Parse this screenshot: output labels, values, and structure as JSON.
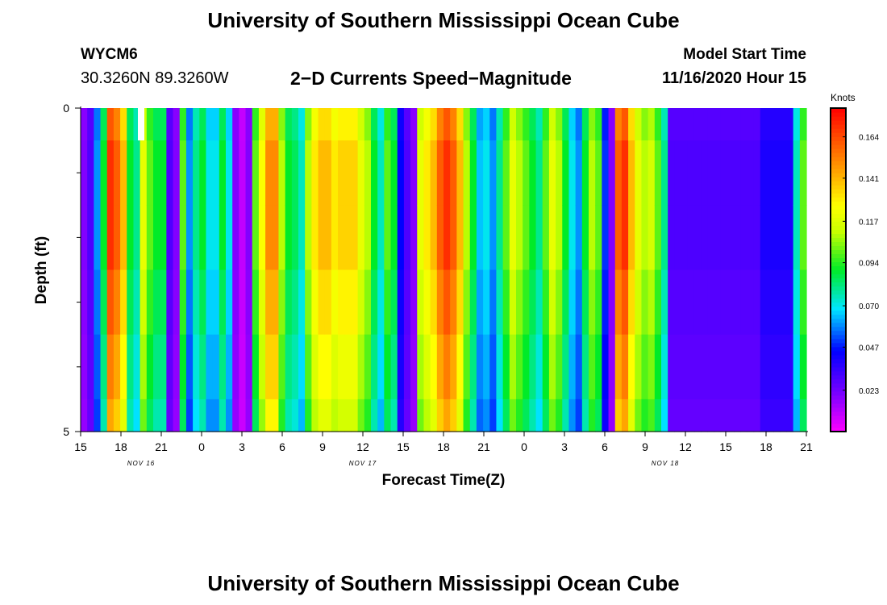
{
  "header": {
    "title": "University of Southern Mississippi Ocean Cube",
    "station_id": "WYCM6",
    "station_coords": "30.3260N 89.3260W",
    "subtitle": "2−D Currents Speed−Magnitude",
    "model_start_label": "Model Start Time",
    "model_start_value": "11/16/2020 Hour 15"
  },
  "footer": {
    "title": "University of Southern Mississippi Ocean Cube"
  },
  "chart_data": {
    "type": "heatmap",
    "xlabel": "Forecast Time(Z)",
    "ylabel": "Depth (ft)",
    "x_range": [
      15,
      69
    ],
    "y_range": [
      0,
      5
    ],
    "x_ticks": [
      {
        "offset": 0,
        "label": "15"
      },
      {
        "offset": 3,
        "label": "18"
      },
      {
        "offset": 6,
        "label": "21"
      },
      {
        "offset": 9,
        "label": "0"
      },
      {
        "offset": 12,
        "label": "3"
      },
      {
        "offset": 15,
        "label": "6"
      },
      {
        "offset": 18,
        "label": "9"
      },
      {
        "offset": 21,
        "label": "12"
      },
      {
        "offset": 24,
        "label": "15"
      },
      {
        "offset": 27,
        "label": "18"
      },
      {
        "offset": 30,
        "label": "21"
      },
      {
        "offset": 33,
        "label": "0"
      },
      {
        "offset": 36,
        "label": "3"
      },
      {
        "offset": 39,
        "label": "6"
      },
      {
        "offset": 42,
        "label": "9"
      },
      {
        "offset": 45,
        "label": "12"
      },
      {
        "offset": 48,
        "label": "15"
      },
      {
        "offset": 51,
        "label": "18"
      },
      {
        "offset": 54,
        "label": "21"
      }
    ],
    "date_labels": [
      {
        "offset": 4.5,
        "label": "NOV 16"
      },
      {
        "offset": 21,
        "label": "NOV 17"
      },
      {
        "offset": 43.5,
        "label": "NOV 18"
      }
    ],
    "y_ticks": [
      {
        "value": 0,
        "label": "0"
      },
      {
        "value": 5,
        "label": "5"
      }
    ],
    "y_minor_ticks": [
      1,
      2,
      3,
      4
    ],
    "depth_layers": [
      0,
      0.5,
      1.5,
      2.5,
      3.5,
      4.5
    ],
    "colorbar": {
      "unit": "Knots",
      "min": 0.0,
      "max": 0.18,
      "tick_values": [
        0.023,
        0.047,
        0.07,
        0.094,
        0.117,
        0.141,
        0.164
      ],
      "tick_labels": [
        "0.023",
        "0.047",
        "0.070",
        "0.094",
        "0.117",
        "0.141",
        "0.164"
      ]
    },
    "hourly_speed_knots": [
      0.02,
      0.03,
      0.06,
      0.09,
      0.17,
      0.16,
      0.14,
      0.09,
      0.08,
      0.12,
      0.1,
      0.09,
      0.09,
      0.03,
      0.02,
      0.1,
      0.06,
      0.08,
      0.09,
      0.07,
      0.07,
      0.09,
      0.07,
      0.02,
      0.01,
      0.02,
      0.1,
      0.125,
      0.15,
      0.15,
      0.11,
      0.09,
      0.085,
      0.075,
      0.11,
      0.13,
      0.14,
      0.14,
      0.13,
      0.135,
      0.135,
      0.135,
      0.12,
      0.11,
      0.09,
      0.075,
      0.1,
      0.09,
      0.045,
      0.03,
      0.02,
      0.12,
      0.13,
      0.14,
      0.16,
      0.17,
      0.16,
      0.14,
      0.11,
      0.09,
      0.065,
      0.07,
      0.06,
      0.08,
      0.1,
      0.12,
      0.11,
      0.1,
      0.09,
      0.08,
      0.1,
      0.12,
      0.11,
      0.09,
      0.07,
      0.06,
      0.09,
      0.11,
      0.1,
      0.05,
      0.02,
      0.16,
      0.17,
      0.14,
      0.12,
      0.11,
      0.115,
      0.1,
      0.08,
      0.03,
      0.03,
      0.03,
      0.03,
      0.03,
      0.03,
      0.03,
      0.03,
      0.03,
      0.03,
      0.03,
      0.03,
      0.03,
      0.03,
      0.04,
      0.04,
      0.04,
      0.04,
      0.04,
      0.075,
      0.1
    ],
    "depth_factor": [
      0.95,
      1.0,
      1.0,
      0.95,
      0.9,
      0.85
    ],
    "missing_cells": [
      {
        "hour_offset": 4.5,
        "depth_from": 0,
        "depth_to": 0.5
      }
    ]
  }
}
